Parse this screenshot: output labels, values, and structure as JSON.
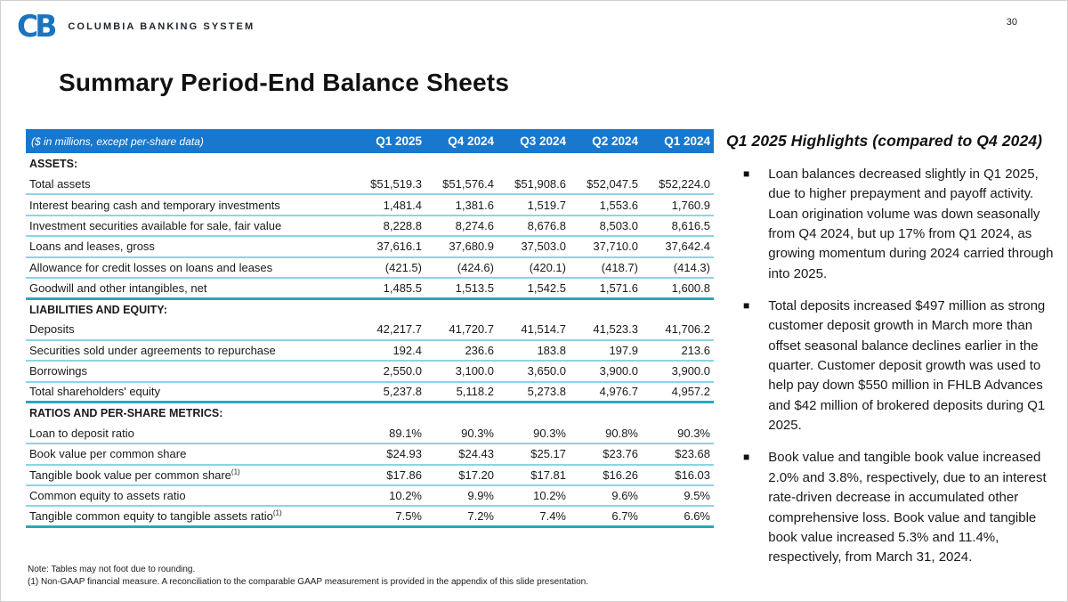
{
  "page": {
    "number": "30"
  },
  "logo": {
    "monogram": "CB",
    "wordmark": "COLUMBIA BANKING SYSTEM"
  },
  "title": "Summary Period-End Balance Sheets",
  "colors": {
    "header_blue": "#1878ce",
    "row_separator_cyan": "#8ad5e5",
    "section_divider_teal": "#2aa6c0",
    "logo_blue": "#1b74c0",
    "text": "#1a1a1a"
  },
  "table": {
    "header_label": "($ in millions, except per-share data)",
    "columns": [
      "Q1 2025",
      "Q4 2024",
      "Q3 2024",
      "Q2 2024",
      "Q1 2024"
    ],
    "rows": [
      {
        "type": "section",
        "label": "ASSETS:"
      },
      {
        "type": "data",
        "label": "Total assets",
        "values": [
          "$51,519.3",
          "$51,576.4",
          "$51,908.6",
          "$52,047.5",
          "$52,224.0"
        ]
      },
      {
        "type": "data",
        "label": "Interest bearing cash and temporary investments",
        "values": [
          "1,481.4",
          "1,381.6",
          "1,519.7",
          "1,553.6",
          "1,760.9"
        ]
      },
      {
        "type": "data",
        "label": "Investment securities available for sale, fair value",
        "values": [
          "8,228.8",
          "8,274.6",
          "8,676.8",
          "8,503.0",
          "8,616.5"
        ]
      },
      {
        "type": "data",
        "label": "Loans and leases, gross",
        "values": [
          "37,616.1",
          "37,680.9",
          "37,503.0",
          "37,710.0",
          "37,642.4"
        ]
      },
      {
        "type": "data",
        "label": "Allowance for credit losses on loans and leases",
        "values": [
          "(421.5)",
          "(424.6)",
          "(420.1)",
          "(418.7)",
          "(414.3)"
        ]
      },
      {
        "type": "data",
        "label": "Goodwill and other intangibles, net",
        "values": [
          "1,485.5",
          "1,513.5",
          "1,542.5",
          "1,571.6",
          "1,600.8"
        ]
      },
      {
        "type": "section",
        "label": "LIABILITIES AND EQUITY:"
      },
      {
        "type": "data",
        "label": "Deposits",
        "values": [
          "42,217.7",
          "41,720.7",
          "41,514.7",
          "41,523.3",
          "41,706.2"
        ]
      },
      {
        "type": "data",
        "label": "Securities sold under agreements to repurchase",
        "values": [
          "192.4",
          "236.6",
          "183.8",
          "197.9",
          "213.6"
        ]
      },
      {
        "type": "data",
        "label": "Borrowings",
        "values": [
          "2,550.0",
          "3,100.0",
          "3,650.0",
          "3,900.0",
          "3,900.0"
        ]
      },
      {
        "type": "data",
        "label": "Total shareholders' equity",
        "values": [
          "5,237.8",
          "5,118.2",
          "5,273.8",
          "4,976.7",
          "4,957.2"
        ]
      },
      {
        "type": "section",
        "label": "RATIOS AND PER-SHARE METRICS:"
      },
      {
        "type": "data",
        "label": "Loan to deposit ratio",
        "values": [
          "89.1%",
          "90.3%",
          "90.3%",
          "90.8%",
          "90.3%"
        ]
      },
      {
        "type": "data",
        "label": "Book value per common share",
        "values": [
          "$24.93",
          "$24.43",
          "$25.17",
          "$23.76",
          "$23.68"
        ]
      },
      {
        "type": "data",
        "label": "Tangible book value per common share",
        "sup": "(1)",
        "values": [
          "$17.86",
          "$17.20",
          "$17.81",
          "$16.26",
          "$16.03"
        ]
      },
      {
        "type": "data",
        "label": "Common equity to assets ratio",
        "values": [
          "10.2%",
          "9.9%",
          "10.2%",
          "9.6%",
          "9.5%"
        ]
      },
      {
        "type": "data",
        "label": "Tangible common equity to tangible assets ratio",
        "sup": "(1)",
        "values": [
          "7.5%",
          "7.2%",
          "7.4%",
          "6.7%",
          "6.6%"
        ]
      }
    ]
  },
  "highlights": {
    "title": "Q1 2025 Highlights (compared to Q4 2024)",
    "bullets": [
      "Loan balances decreased slightly in Q1 2025, due to higher prepayment and payoff activity. Loan origination volume was down seasonally from Q4 2024, but up 17% from Q1 2024, as growing momentum during 2024 carried through into 2025.",
      "Total deposits increased $497 million as strong customer deposit growth in March more than offset seasonal balance declines earlier in the quarter. Customer deposit growth was used to help pay down $550 million in FHLB Advances and $42 million of brokered deposits during Q1 2025.",
      "Book value and tangible book value increased 2.0% and 3.8%, respectively, due to an interest rate-driven decrease in accumulated other comprehensive loss. Book value and tangible book value increased 5.3% and 11.4%, respectively, from March 31, 2024."
    ]
  },
  "footnotes": [
    "Note: Tables may not foot due to rounding.",
    "(1)   Non-GAAP financial measure.  A reconciliation to the comparable GAAP measurement is provided in the appendix of this slide presentation."
  ]
}
